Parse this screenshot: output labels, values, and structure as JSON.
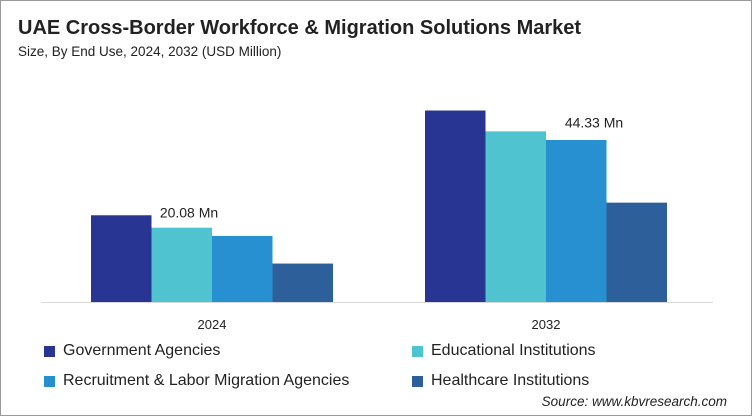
{
  "title": "UAE Cross-Border Workforce & Migration Solutions Market",
  "subtitle": "Size, By End Use, 2024, 2032 (USD Million)",
  "source": "Source: www.kbvresearch.com",
  "chart_data": {
    "type": "bar",
    "categories": [
      "2024",
      "2032"
    ],
    "series": [
      {
        "name": "Government Agencies",
        "values": [
          20.08,
          44.33
        ],
        "color": "#283593"
      },
      {
        "name": "Educational Institutions",
        "values": [
          17.2,
          39.5
        ],
        "color": "#4fc3cf"
      },
      {
        "name": "Recruitment & Labor Migration Agencies",
        "values": [
          15.3,
          37.5
        ],
        "color": "#2690d0"
      },
      {
        "name": "Healthcare Institutions",
        "values": [
          8.9,
          23.0
        ],
        "color": "#2d5f9a"
      }
    ],
    "data_labels": [
      "20.08 Mn",
      "44.33 Mn"
    ],
    "ylim": [
      0,
      46.3
    ],
    "grid": false,
    "legend": "bottom"
  }
}
